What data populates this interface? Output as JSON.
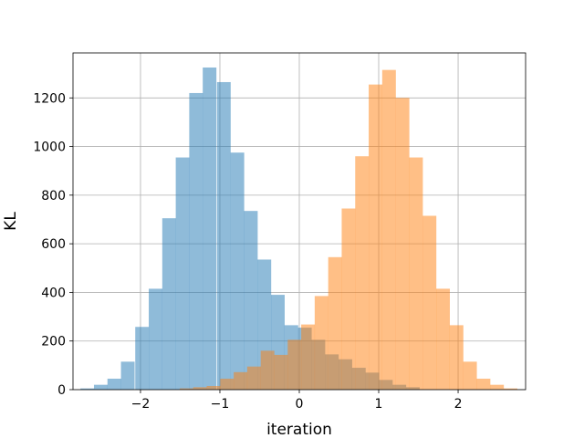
{
  "chart_data": {
    "type": "bar",
    "title": "",
    "xlabel": "iteration",
    "ylabel": "KL",
    "xlim": [
      -2.85,
      2.85
    ],
    "ylim": [
      0,
      1385
    ],
    "grid": true,
    "xticks": [
      -2,
      -1,
      0,
      1,
      2
    ],
    "xtick_labels": [
      "−2",
      "−1",
      "0",
      "1",
      "2"
    ],
    "yticks": [
      0,
      200,
      400,
      600,
      800,
      1000,
      1200
    ],
    "yticks_labels": [
      "0",
      "200",
      "400",
      "600",
      "800",
      "1000",
      "1200"
    ],
    "bin_width": 0.172,
    "series": [
      {
        "color": "#1f77b4",
        "opacity": 0.5,
        "bins": [
          {
            "x": -2.67,
            "count": 5
          },
          {
            "x": -2.5,
            "count": 20
          },
          {
            "x": -2.33,
            "count": 45
          },
          {
            "x": -2.16,
            "count": 115
          },
          {
            "x": -1.98,
            "count": 258
          },
          {
            "x": -1.81,
            "count": 415
          },
          {
            "x": -1.64,
            "count": 705
          },
          {
            "x": -1.47,
            "count": 955
          },
          {
            "x": -1.3,
            "count": 1220
          },
          {
            "x": -1.13,
            "count": 1325
          },
          {
            "x": -0.95,
            "count": 1265
          },
          {
            "x": -0.78,
            "count": 975
          },
          {
            "x": -0.61,
            "count": 735
          },
          {
            "x": -0.44,
            "count": 535
          },
          {
            "x": -0.27,
            "count": 390
          },
          {
            "x": -0.1,
            "count": 265
          },
          {
            "x": 0.07,
            "count": 255
          },
          {
            "x": 0.24,
            "count": 205
          },
          {
            "x": 0.41,
            "count": 145
          },
          {
            "x": 0.58,
            "count": 125
          },
          {
            "x": 0.75,
            "count": 90
          },
          {
            "x": 0.92,
            "count": 70
          },
          {
            "x": 1.09,
            "count": 40
          },
          {
            "x": 1.26,
            "count": 20
          },
          {
            "x": 1.43,
            "count": 10
          }
        ]
      },
      {
        "color": "#ff7f0e",
        "opacity": 0.5,
        "bins": [
          {
            "x": -1.42,
            "count": 5
          },
          {
            "x": -1.25,
            "count": 10
          },
          {
            "x": -1.08,
            "count": 15
          },
          {
            "x": -0.91,
            "count": 45
          },
          {
            "x": -0.74,
            "count": 72
          },
          {
            "x": -0.57,
            "count": 95
          },
          {
            "x": -0.4,
            "count": 160
          },
          {
            "x": -0.23,
            "count": 143
          },
          {
            "x": -0.06,
            "count": 205
          },
          {
            "x": 0.11,
            "count": 268
          },
          {
            "x": 0.28,
            "count": 385
          },
          {
            "x": 0.45,
            "count": 545
          },
          {
            "x": 0.62,
            "count": 745
          },
          {
            "x": 0.79,
            "count": 960
          },
          {
            "x": 0.96,
            "count": 1255
          },
          {
            "x": 1.13,
            "count": 1315
          },
          {
            "x": 1.3,
            "count": 1200
          },
          {
            "x": 1.47,
            "count": 955
          },
          {
            "x": 1.64,
            "count": 715
          },
          {
            "x": 1.81,
            "count": 415
          },
          {
            "x": 1.98,
            "count": 265
          },
          {
            "x": 2.15,
            "count": 115
          },
          {
            "x": 2.32,
            "count": 45
          },
          {
            "x": 2.49,
            "count": 20
          },
          {
            "x": 2.66,
            "count": 5
          }
        ]
      }
    ]
  }
}
